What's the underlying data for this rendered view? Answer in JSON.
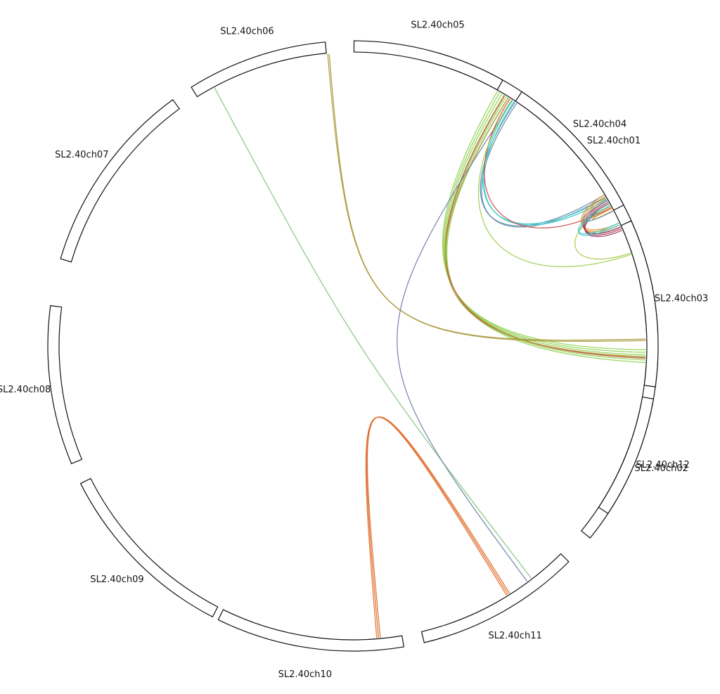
{
  "diagram": {
    "chromosomes": [
      {
        "id": "ch01",
        "label": "SL2.40ch01",
        "start_deg": -73.8,
        "end_deg": -2.6
      },
      {
        "id": "ch12",
        "label": "SL2.40ch12",
        "start_deg": 3.0,
        "end_deg": 39.0
      },
      {
        "id": "ch11",
        "label": "SL2.40ch11",
        "start_deg": 45.0,
        "end_deg": 76.5
      },
      {
        "id": "ch10",
        "label": "SL2.40ch10",
        "start_deg": 80.4,
        "end_deg": 116.2
      },
      {
        "id": "ch09",
        "label": "SL2.40ch09",
        "start_deg": 117.4,
        "end_deg": 153.2
      },
      {
        "id": "ch08",
        "label": "SL2.40ch08",
        "start_deg": 157.3,
        "end_deg": 187.6
      },
      {
        "id": "ch07",
        "label": "SL2.40ch07",
        "start_deg": 196.6,
        "end_deg": 233.8
      },
      {
        "id": "ch06",
        "label": "SL2.40ch06",
        "start_deg": 238.0,
        "end_deg": 264.8
      },
      {
        "id": "ch05",
        "label": "SL2.40ch05",
        "start_deg": 270.2,
        "end_deg": 299.4
      },
      {
        "id": "ch04",
        "label": "SL2.40ch04",
        "start_deg": 303.6,
        "end_deg": 332.5
      },
      {
        "id": "ch03",
        "label": "SL2.40ch03",
        "start_deg": 335.8,
        "end_deg": 367.7
      },
      {
        "id": "ch02",
        "label": "SL2.40ch02",
        "start_deg": 370.0,
        "end_deg": 393.3
      }
    ],
    "links": [
      {
        "from": "ch04",
        "to": "ch01",
        "a": -59.2,
        "b": 2.0,
        "color": "#8fd14f",
        "count": 6,
        "spread": 0.5,
        "bulge": 0.28
      },
      {
        "from": "ch04",
        "to": "ch01",
        "a": -58.8,
        "b": 2.4,
        "color": "#c9463f",
        "count": 1,
        "spread": 0,
        "bulge": 0.28
      },
      {
        "from": "ch04",
        "to": "ch01",
        "a": -58.0,
        "b": 2.1,
        "color": "#b29a3c",
        "count": 1,
        "spread": 0,
        "bulge": 0.27
      },
      {
        "from": "ch06",
        "to": "ch01",
        "a": -94.8,
        "b": -1.2,
        "color": "#a89a3c",
        "count": 2,
        "spread": 0.3,
        "bulge": 0.05
      },
      {
        "from": "ch05",
        "to": "ch11",
        "a": -118.2,
        "b": 52.5,
        "color": "#7fc77a",
        "count": 1,
        "spread": 0,
        "bulge": 0.02
      },
      {
        "from": "ch04",
        "to": "ch11",
        "a": -57.0,
        "b": 53.5,
        "color": "#6f7ea8",
        "count": 1,
        "spread": 0,
        "bulge": 0.02
      },
      {
        "from": "ch04",
        "to": "ch02",
        "a": -56.2,
        "b": -30.8,
        "color": "#5f8ba8",
        "count": 2,
        "spread": 0.4,
        "bulge": 0.55
      },
      {
        "from": "ch04",
        "to": "ch02",
        "a": -56.8,
        "b": -30.2,
        "color": "#3fc9c9",
        "count": 2,
        "spread": 0.4,
        "bulge": 0.58
      },
      {
        "from": "ch04",
        "to": "ch02",
        "a": -57.6,
        "b": -28.2,
        "color": "#d04848",
        "count": 1,
        "spread": 0,
        "bulge": 0.6
      },
      {
        "from": "ch04",
        "to": "ch01",
        "a": -57.2,
        "b": -18.2,
        "color": "#9ccf50",
        "count": 1,
        "spread": 0,
        "bulge": 0.52
      },
      {
        "from": "ch03",
        "to": "ch01",
        "a": -28.6,
        "b": -18.5,
        "color": "#a6c94a",
        "count": 1,
        "spread": 0,
        "bulge": 0.78
      },
      {
        "from": "ch03",
        "to": "ch02",
        "a": -28.6,
        "b": -28.0,
        "color": "#e8902a",
        "count": 3,
        "spread": 0.5,
        "bulge": 0.9
      },
      {
        "from": "ch02",
        "to": "ch02",
        "a": -30.6,
        "b": -24.4,
        "color": "#e8902a",
        "count": 3,
        "spread": 0.4,
        "bulge": 0.85
      },
      {
        "from": "ch02",
        "to": "ch02",
        "a": -29.4,
        "b": -23.6,
        "color": "#a0305a",
        "count": 3,
        "spread": 0.35,
        "bulge": 0.85
      },
      {
        "from": "ch02",
        "to": "ch02",
        "a": -28.8,
        "b": -24.6,
        "color": "#3fc9c9",
        "count": 2,
        "spread": 0.4,
        "bulge": 0.82
      },
      {
        "from": "ch03",
        "to": "ch02",
        "a": -29.8,
        "b": -27.4,
        "color": "#5f8ba8",
        "count": 1,
        "spread": 0,
        "bulge": 0.86
      },
      {
        "from": "ch10",
        "to": "ch10",
        "a": 85.0,
        "b": 58.0,
        "color": "#e06a2a",
        "count": 3,
        "spread": 0.35,
        "bulge": 0.02
      }
    ]
  }
}
